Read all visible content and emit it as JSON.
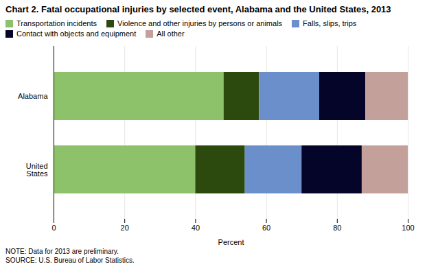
{
  "chart_data": {
    "type": "bar",
    "orientation": "horizontal",
    "stacked": true,
    "title": "Chart 2. Fatal occupational injuries by selected event, Alabama and the United States, 2013",
    "categories": [
      "Alabama",
      "United\nStates"
    ],
    "series": [
      {
        "name": "Transportation incidents",
        "color": "#8dc16a",
        "values": [
          48,
          40
        ]
      },
      {
        "name": "Violence and other injuries by persons or animals",
        "color": "#2d4a0e",
        "values": [
          10,
          14
        ]
      },
      {
        "name": "Falls, slips, trips",
        "color": "#6b8fcb",
        "values": [
          17,
          16
        ]
      },
      {
        "name": "Contact with objects and equipment",
        "color": "#05052a",
        "values": [
          13,
          17
        ]
      },
      {
        "name": "All other",
        "color": "#c4a09a",
        "values": [
          12,
          13
        ]
      }
    ],
    "xlabel": "Percent",
    "xlim": [
      0,
      100
    ],
    "xticks": [
      0,
      20,
      40,
      60,
      80,
      100
    ],
    "grid": true,
    "note": "NOTE: Data for 2013 are preliminary.\nSOURCE: U.S. Bureau of Labor Statistics."
  }
}
